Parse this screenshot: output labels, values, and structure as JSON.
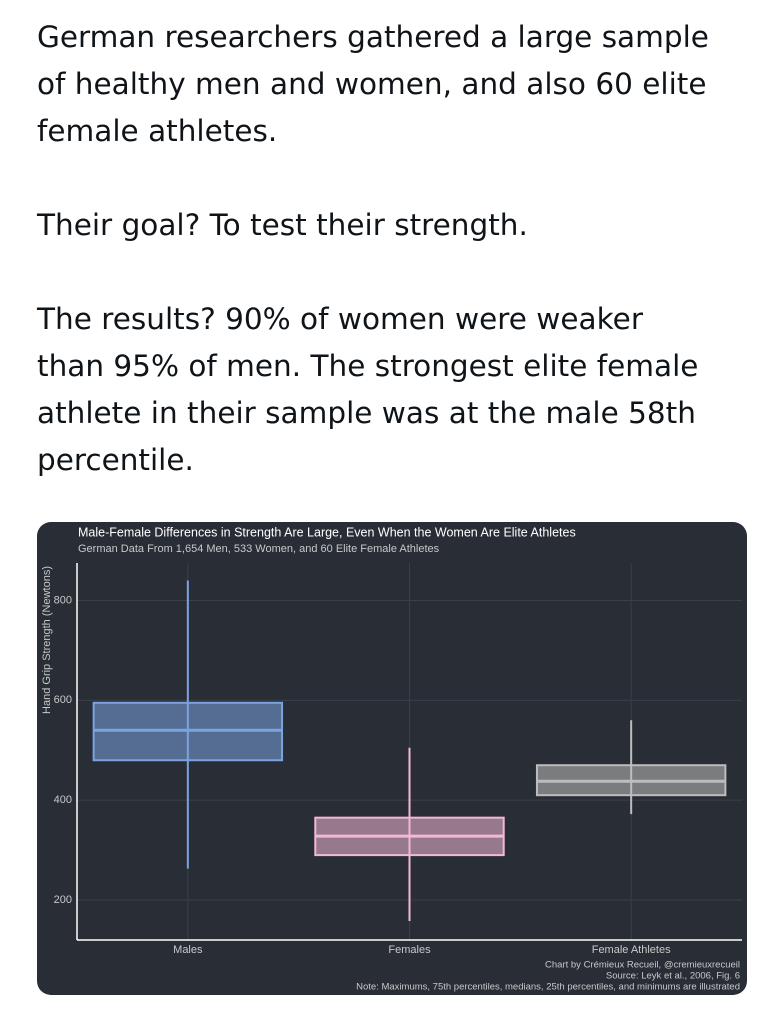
{
  "tweet": {
    "paragraphs": [
      [
        "German researchers gathered a large sample",
        "of healthy men and women, and also 60 elite",
        "female athletes."
      ],
      [
        "Their goal? To test their strength."
      ],
      [
        "The results? 90% of women were weaker",
        "than 95% of men. The strongest elite female",
        "athlete in their sample was at the male 58th",
        "percentile."
      ]
    ]
  },
  "chart_data": {
    "type": "box",
    "title": "Male-Female Differences in Strength Are Large, Even When the Women Are Elite Athletes",
    "subtitle": "German Data From 1,654 Men, 533 Women, and 60 Elite Female Athletes",
    "y_label": "Hand Grip Strength (Newtons)",
    "series": [
      {
        "name": "Males",
        "color": "#7ba3e0",
        "min": 263,
        "q1": 480,
        "median": 540,
        "q3": 595,
        "max": 840
      },
      {
        "name": "Females",
        "color": "#f2b8d4",
        "min": 158,
        "q1": 290,
        "median": 328,
        "q3": 365,
        "max": 505
      },
      {
        "name": "Female Athletes",
        "color": "#bdbdbd",
        "min": 372,
        "q1": 410,
        "median": 438,
        "q3": 470,
        "max": 560
      }
    ],
    "ylim": [
      120,
      875
    ],
    "yticks": [
      200,
      400,
      600,
      800
    ],
    "grid": true,
    "notes": [
      "Chart by Crémieux Recueil, @cremieuxrecueil",
      "Source: Leyk et al., 2006, Fig. 6",
      "Note: Maximums, 75th percentiles, medians, 25th percentiles, and minimums are illustrated"
    ]
  }
}
